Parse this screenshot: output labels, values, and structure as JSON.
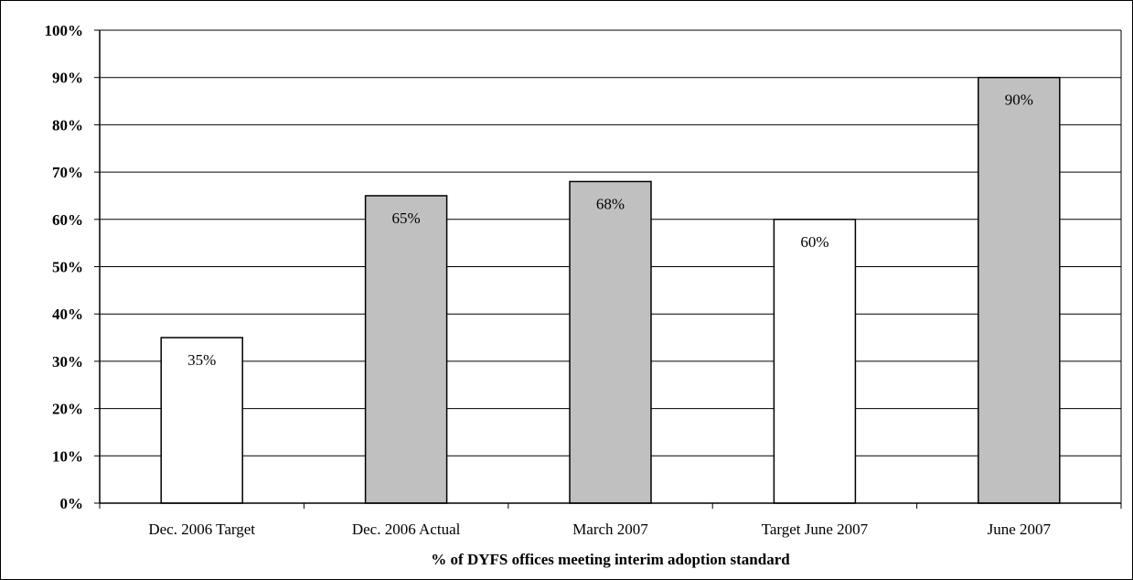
{
  "chart_data": {
    "type": "bar",
    "categories": [
      "Dec. 2006 Target",
      "Dec. 2006 Actual",
      "March 2007",
      "Target June 2007",
      "June 2007"
    ],
    "values": [
      35,
      65,
      68,
      60,
      90
    ],
    "data_labels": [
      "35%",
      "65%",
      "68%",
      "60%",
      "90%"
    ],
    "bar_colors": [
      "#ffffff",
      "#c0c0c0",
      "#c0c0c0",
      "#ffffff",
      "#c0c0c0"
    ],
    "title": "",
    "xlabel": "% of DYFS offices meeting interim adoption standard",
    "ylabel": "",
    "ylim": [
      0,
      100
    ],
    "yticks": [
      "0%",
      "10%",
      "20%",
      "30%",
      "40%",
      "50%",
      "60%",
      "70%",
      "80%",
      "90%",
      "100%"
    ],
    "grid": true,
    "legend": "none"
  }
}
